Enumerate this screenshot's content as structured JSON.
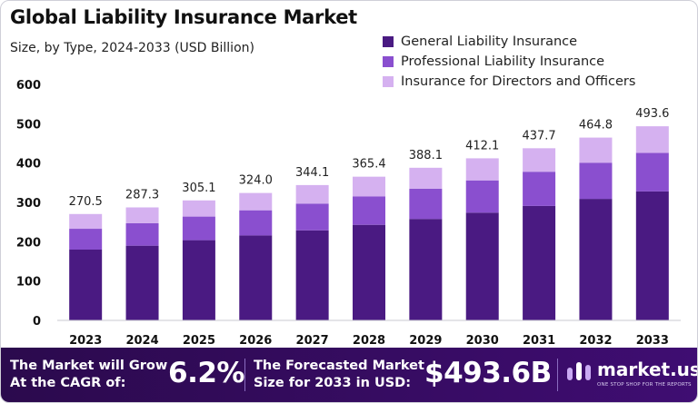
{
  "colors": {
    "series1": "#4a1a82",
    "series2": "#8a4fcf",
    "series3": "#d5b1f0",
    "footer_bg": "#3a0c6a",
    "footer_accent": "#ffffff"
  },
  "chart_data": {
    "type": "bar",
    "stacked": true,
    "title": "Global Liability Insurance Market",
    "subtitle": "Size, by Type, 2024-2033 (USD Billion)",
    "categories": [
      "2023",
      "2024",
      "2025",
      "2026",
      "2027",
      "2028",
      "2029",
      "2030",
      "2031",
      "2032",
      "2033"
    ],
    "series": [
      {
        "name": "General Liability Insurance",
        "values": [
          180,
          190,
          204,
          216,
          229,
          243,
          258,
          274,
          291,
          309,
          328
        ]
      },
      {
        "name": "Professional Liability Insurance",
        "values": [
          53,
          57,
          60,
          64,
          68,
          72,
          77,
          82,
          87,
          92,
          98
        ]
      },
      {
        "name": "Insurance for Directors and Officers",
        "values": [
          37.5,
          40.3,
          41.1,
          44,
          47.1,
          50.4,
          53.1,
          56.1,
          59.7,
          63.8,
          67.6
        ]
      }
    ],
    "totals": [
      "270.5",
      "287.3",
      "305.1",
      "324.0",
      "344.1",
      "365.4",
      "388.1",
      "412.1",
      "437.7",
      "464.8",
      "493.6"
    ],
    "yticks": [
      "0",
      "100",
      "200",
      "300",
      "400",
      "500",
      "600"
    ],
    "ylim": [
      0,
      600
    ],
    "legend_position": "top-right",
    "grid": false
  },
  "footer": {
    "cagr_text_line1": "The Market will Grow",
    "cagr_text_line2": "At the CAGR of:",
    "cagr_value": "6.2%",
    "forecast_text_line1": "The Forecasted Market",
    "forecast_text_line2": "Size for 2033 in USD:",
    "forecast_value": "$493.6B",
    "brand_name": "market.us",
    "brand_tagline": "ONE STOP SHOP FOR THE REPORTS",
    "brand_icon": "market-us-logo-icon"
  }
}
